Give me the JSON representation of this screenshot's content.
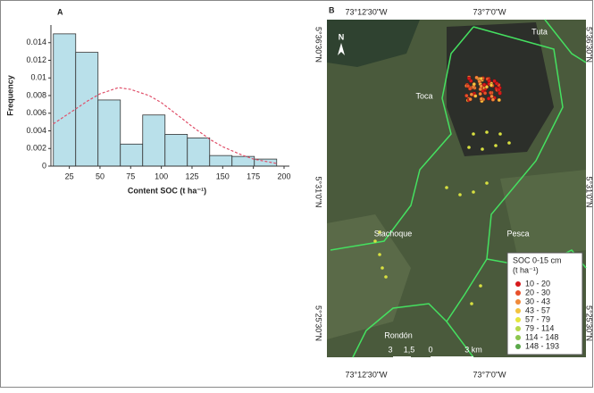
{
  "chart_data": {
    "type": "histogram",
    "panel_label": "A",
    "y_label": "Frequency",
    "x_label": "Content SOC (t ha⁻¹)",
    "bins": [
      12,
      30.2,
      48.4,
      66.6,
      84.8,
      103,
      121.2,
      139.4,
      157.6,
      175.8,
      194
    ],
    "values": [
      0.015,
      0.0129,
      0.0075,
      0.0025,
      0.0058,
      0.0036,
      0.0032,
      0.0012,
      0.0011,
      0.0008
    ],
    "color": "#b9e0ea",
    "curve": {
      "color": "#e0506a",
      "x": [
        12,
        25,
        40,
        50,
        65,
        75,
        90,
        100,
        115,
        125,
        140,
        150,
        165,
        175,
        194
      ],
      "values": [
        0.0048,
        0.006,
        0.0074,
        0.0082,
        0.0089,
        0.0087,
        0.008,
        0.0072,
        0.0056,
        0.0045,
        0.003,
        0.0022,
        0.0013,
        0.0008,
        0.0003
      ]
    },
    "xlim": [
      10,
      200
    ],
    "xticks": [
      25,
      50,
      75,
      100,
      125,
      150,
      175,
      200
    ],
    "ylim": [
      0,
      0.016
    ],
    "yticks": [
      0,
      0.002,
      0.004,
      0.006,
      0.008,
      0.01,
      0.012,
      0.014
    ]
  },
  "map": {
    "panel_label": "B",
    "top_labels": [
      "73°12'30\"W",
      "73°7'0\"W"
    ],
    "bottom_labels": [
      "73°12'30\"W",
      "73°7'0\"W"
    ],
    "left_labels": [
      "5°36'30\"N",
      "5°31'0\"N",
      "5°25'30\"N"
    ],
    "right_labels": [
      "5°36'30\"N",
      "5°31'0\"N",
      "5°25'30\"N"
    ],
    "places": [
      "Tuta",
      "Toca",
      "Siachoque",
      "Pesca",
      "Rondón"
    ],
    "north": "N",
    "scale": [
      "3",
      "1,5",
      "0",
      "3 km"
    ],
    "legend": {
      "title": "SOC 0-15 cm",
      "unit": "(t ha⁻¹)",
      "items": [
        {
          "label": "10 - 20",
          "color": "#d7191c"
        },
        {
          "label": "20 - 30",
          "color": "#e8502a"
        },
        {
          "label": "30 - 43",
          "color": "#f08a3a"
        },
        {
          "label": "43 - 57",
          "color": "#f3c33f"
        },
        {
          "label": "57 - 79",
          "color": "#e6e63c"
        },
        {
          "label": "79 - 114",
          "color": "#b6d84a"
        },
        {
          "label": "114 - 148",
          "color": "#8cc64f"
        },
        {
          "label": "148 - 193",
          "color": "#5aa84a"
        }
      ]
    }
  }
}
